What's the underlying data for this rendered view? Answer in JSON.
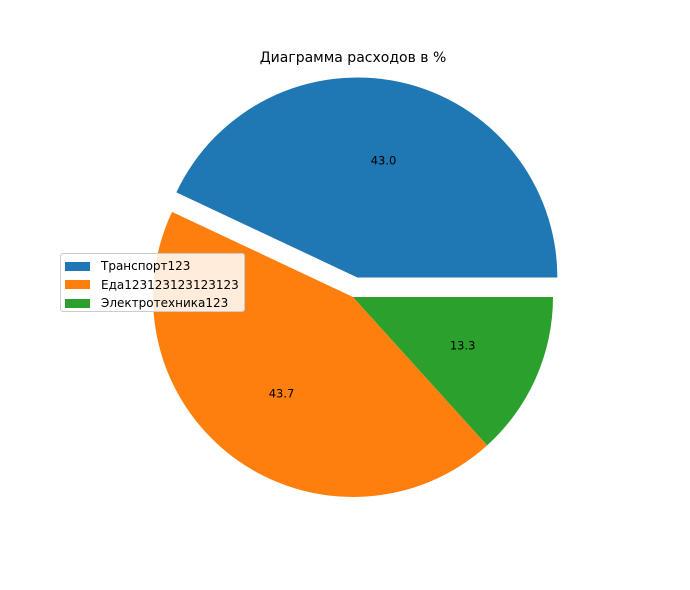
{
  "chart_data": {
    "type": "pie",
    "title": "Диаграмма расходов в %",
    "categories": [
      "Транспорт123",
      "Еда123123123123123",
      "Электротехника123"
    ],
    "values": [
      43.0,
      43.7,
      13.3
    ],
    "labels": [
      "43.0",
      "43.7",
      "13.3"
    ],
    "colors": [
      "#1f77b4",
      "#ff7f0e",
      "#2ca02c"
    ],
    "explode": [
      0.1,
      0,
      0
    ],
    "start_angle_deg": 0,
    "direction": "counterclockwise",
    "legend_position": "center-left"
  }
}
